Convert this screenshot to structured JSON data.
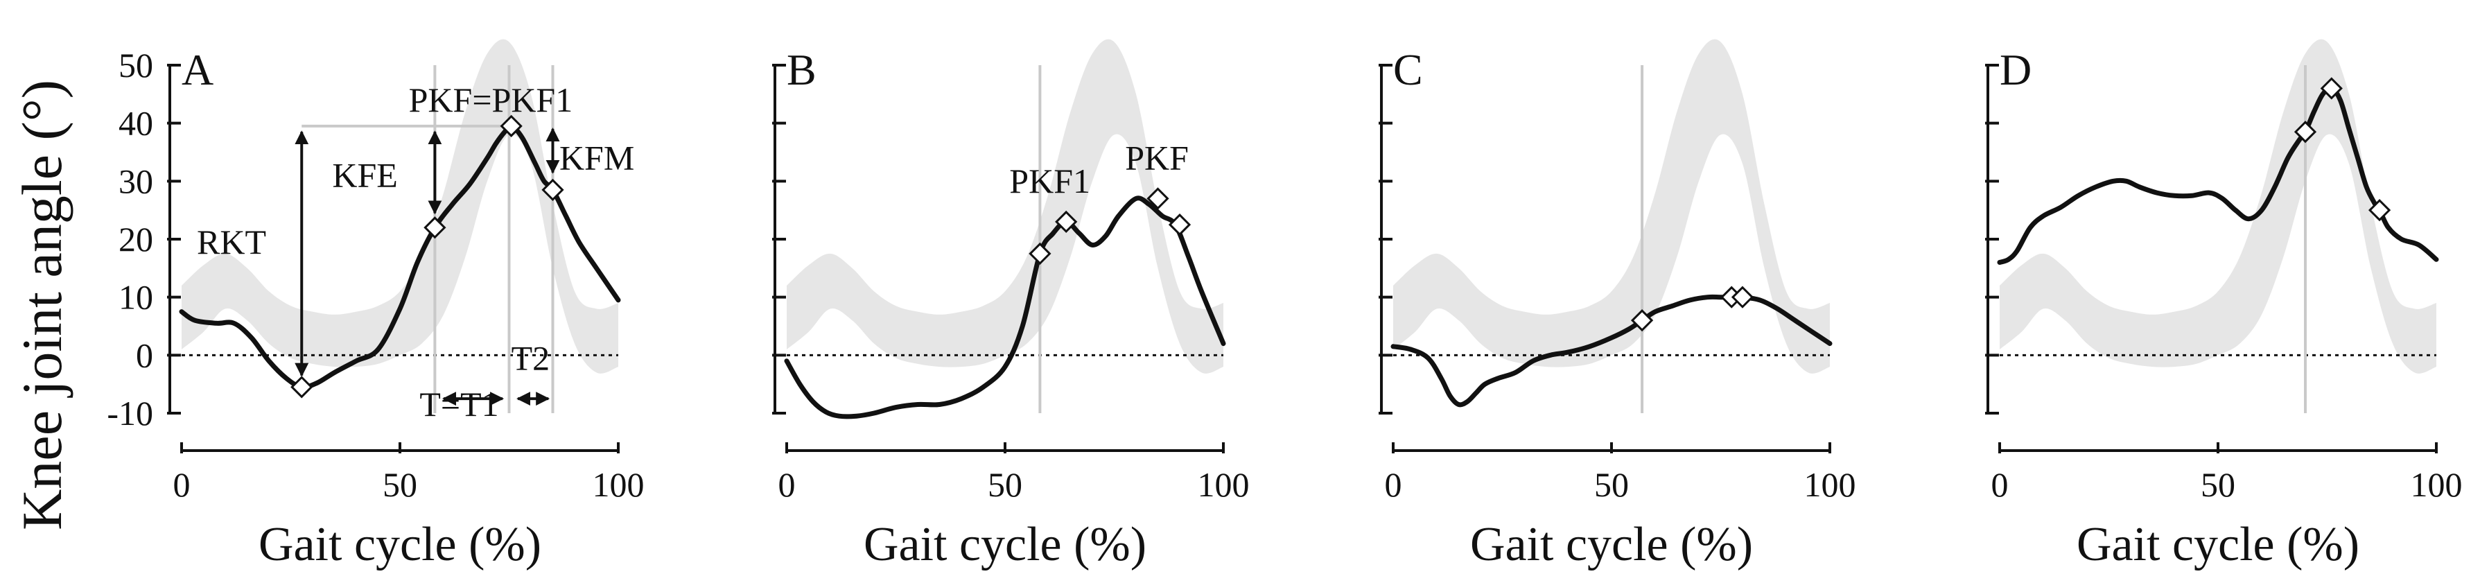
{
  "chart_data": {
    "type": "line",
    "ylabel": "Knee joint angle (°)",
    "xlabel": "Gait cycle (%)",
    "ylim": [
      -10,
      50
    ],
    "xlim": [
      0,
      100
    ],
    "yticks": [
      -10,
      0,
      10,
      20,
      30,
      40,
      50
    ],
    "xticks": [
      0,
      50,
      100
    ],
    "reference_band": {
      "name": "normal swing knee flexion (gray band)",
      "x": [
        0,
        5,
        10,
        15,
        20,
        25,
        30,
        35,
        40,
        45,
        50,
        55,
        60,
        65,
        70,
        75,
        80,
        85,
        90,
        95,
        100
      ],
      "upper": [
        12,
        15.5,
        17.5,
        15,
        11,
        8.5,
        7.5,
        7,
        7.5,
        8.5,
        11,
        17,
        28,
        42,
        52,
        54,
        45,
        26,
        11,
        8,
        9
      ],
      "lower": [
        1,
        4,
        8,
        6,
        2,
        -0.5,
        -1.5,
        -2,
        -2,
        -1.5,
        0,
        2,
        7,
        17,
        30,
        38,
        33,
        15,
        2,
        -3,
        -2
      ],
      "color": "#e6e6e6"
    },
    "panels": [
      {
        "label": "A",
        "vlines": [
          58,
          75,
          85
        ],
        "series": {
          "x": [
            0,
            3,
            8,
            12,
            16,
            20,
            24,
            27.5,
            31,
            35,
            40,
            45,
            50,
            54,
            58,
            62,
            66,
            70,
            72,
            74,
            75.5,
            78,
            81,
            83,
            85,
            88,
            91,
            95,
            100
          ],
          "y": [
            7.5,
            6,
            5.5,
            5.5,
            3,
            -1,
            -4,
            -5.5,
            -4.8,
            -3,
            -1,
            1,
            8,
            16,
            22,
            26,
            29.5,
            34,
            36.5,
            38.5,
            39.5,
            37.5,
            33,
            30,
            28.5,
            24,
            19.5,
            15,
            9.5
          ]
        },
        "markers": [
          {
            "x": 27.5,
            "y": -5.5
          },
          {
            "x": 58,
            "y": 22
          },
          {
            "x": 75.5,
            "y": 39.5
          },
          {
            "x": 85,
            "y": 28.5
          }
        ],
        "annotations": {
          "rkt": "RKT",
          "kfe": "KFE",
          "pkf_pkf1": "PKF=PKF1",
          "kfm": "KFM",
          "t2": "T2",
          "t_t1": "T=T1"
        }
      },
      {
        "label": "B",
        "vlines": [
          58
        ],
        "series": {
          "x": [
            0,
            3,
            6,
            9,
            12,
            16,
            20,
            25,
            30,
            35,
            40,
            45,
            50,
            54,
            58,
            61,
            64,
            67,
            70,
            73,
            76,
            80,
            83,
            86,
            89,
            92,
            95,
            100
          ],
          "y": [
            -1,
            -5,
            -8,
            -9.8,
            -10.5,
            -10.5,
            -10,
            -9,
            -8.5,
            -8.5,
            -7.5,
            -5.5,
            -2,
            5,
            17.5,
            21,
            23,
            21,
            19,
            20.5,
            24,
            27,
            26,
            24,
            22.5,
            17,
            11,
            2
          ]
        },
        "markers": [
          {
            "x": 58,
            "y": 17.5
          },
          {
            "x": 64,
            "y": 23
          },
          {
            "x": 85,
            "y": 27
          },
          {
            "x": 90,
            "y": 22.5
          }
        ],
        "annotations": {
          "pkf1": "PKF1",
          "pkf": "PKF"
        }
      },
      {
        "label": "C",
        "vlines": [
          57
        ],
        "series": {
          "x": [
            0,
            4,
            8,
            11,
            13,
            15,
            17,
            19,
            21,
            24,
            28,
            32,
            36,
            40,
            45,
            50,
            54,
            57,
            60,
            64,
            68,
            72,
            75,
            77.5,
            80,
            84,
            88,
            92,
            96,
            100
          ],
          "y": [
            1.5,
            1,
            -0.5,
            -4,
            -7,
            -8.5,
            -8,
            -6.5,
            -5,
            -4,
            -3,
            -1,
            0,
            0.5,
            1.5,
            3,
            4.5,
            6,
            7.5,
            8.5,
            9.5,
            10,
            10,
            10,
            10,
            9.5,
            8,
            6,
            4,
            2
          ]
        },
        "markers": [
          {
            "x": 57,
            "y": 6
          },
          {
            "x": 77.5,
            "y": 10
          },
          {
            "x": 80,
            "y": 10
          }
        ],
        "annotations": {}
      },
      {
        "label": "D",
        "vlines": [
          70
        ],
        "series": {
          "x": [
            0,
            2,
            4,
            7,
            10,
            14,
            18,
            22,
            26,
            29,
            32,
            36,
            40,
            44,
            48,
            51,
            54,
            57,
            60,
            63,
            66,
            68.5,
            70,
            72,
            74,
            76,
            78,
            80,
            82,
            84,
            86,
            87,
            89,
            92,
            96,
            100
          ],
          "y": [
            16,
            16.5,
            18,
            22,
            24,
            25.5,
            27.5,
            29,
            30,
            30,
            29,
            28,
            27.5,
            27.5,
            28,
            27,
            25,
            23.5,
            25,
            29,
            34,
            37,
            38.5,
            42,
            45,
            46,
            44,
            39,
            34,
            29,
            26,
            25,
            22,
            20,
            19,
            16.5
          ]
        },
        "markers": [
          {
            "x": 70,
            "y": 38.5
          },
          {
            "x": 76,
            "y": 46
          },
          {
            "x": 87,
            "y": 25
          }
        ],
        "annotations": {}
      }
    ]
  }
}
